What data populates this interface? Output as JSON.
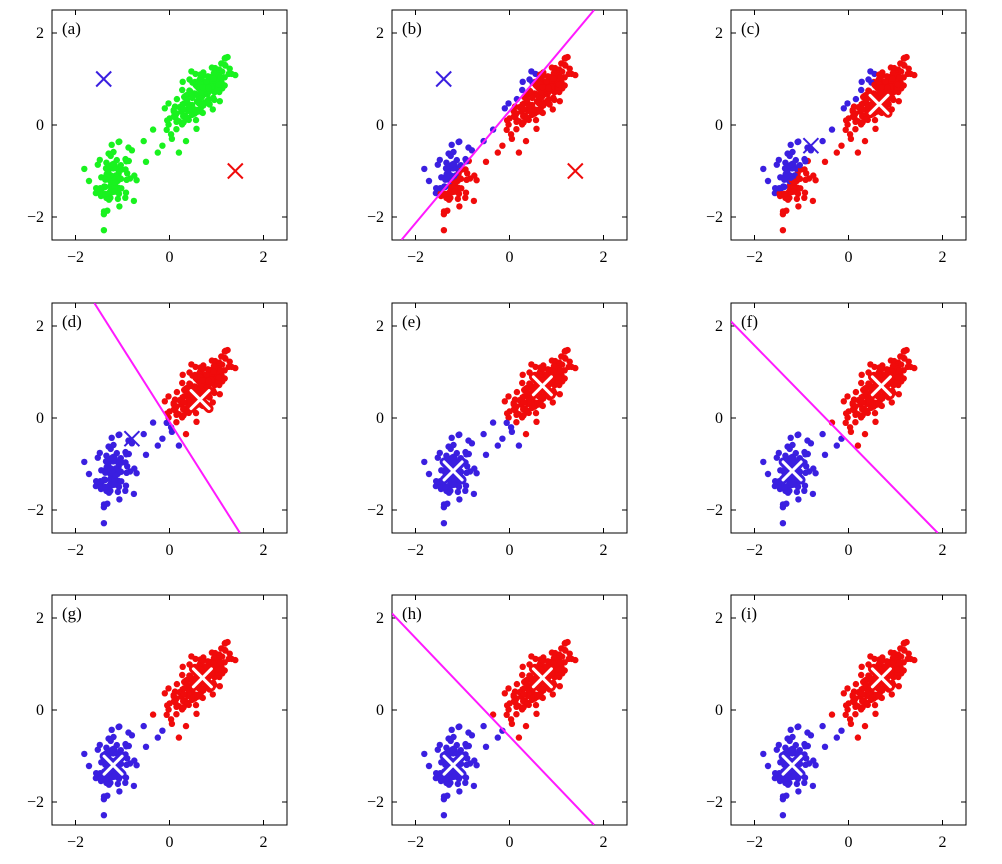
{
  "figure": {
    "background": "#ffffff",
    "colors": {
      "blue": "#3a1fe0",
      "red": "#f00b0b",
      "green": "#19f21f",
      "magenta": "#ff1aff",
      "axis": "#000000"
    }
  },
  "chart_data": [
    {
      "type": "scatter",
      "panel_label": "(a)",
      "xlim": [
        -2.5,
        2.5
      ],
      "ylim": [
        -2.5,
        2.5
      ],
      "xticks": [
        -2,
        0,
        2
      ],
      "yticks": [
        -2,
        0,
        2
      ],
      "xtick_labels": [
        "−2",
        "0",
        "2"
      ],
      "ytick_labels": [
        "−2",
        "0",
        "2"
      ],
      "colouring": "green",
      "centroids": [
        {
          "x": -1.4,
          "y": 1.0,
          "color": "blue",
          "style": "cross"
        },
        {
          "x": 1.4,
          "y": -1.0,
          "color": "red",
          "style": "cross"
        }
      ],
      "boundary": null
    },
    {
      "type": "scatter",
      "panel_label": "(b)",
      "xlim": [
        -2.5,
        2.5
      ],
      "ylim": [
        -2.5,
        2.5
      ],
      "xticks": [
        -2,
        0,
        2
      ],
      "yticks": [
        -2,
        0,
        2
      ],
      "xtick_labels": [
        "−2",
        "0",
        "2"
      ],
      "ytick_labels": [
        "−2",
        "0",
        "2"
      ],
      "colouring": "b",
      "centroids": [
        {
          "x": -1.4,
          "y": 1.0,
          "color": "blue",
          "style": "cross"
        },
        {
          "x": 1.4,
          "y": -1.0,
          "color": "red",
          "style": "cross"
        }
      ],
      "boundary": {
        "x1": -2.3,
        "y1": -2.5,
        "x2": 1.8,
        "y2": 2.5
      }
    },
    {
      "type": "scatter",
      "panel_label": "(c)",
      "xlim": [
        -2.5,
        2.5
      ],
      "ylim": [
        -2.5,
        2.5
      ],
      "xticks": [
        -2,
        0,
        2
      ],
      "yticks": [
        -2,
        0,
        2
      ],
      "xtick_labels": [
        "−2",
        "0",
        "2"
      ],
      "ytick_labels": [
        "−2",
        "0",
        "2"
      ],
      "colouring": "b",
      "centroids": [
        {
          "x": -0.8,
          "y": -0.45,
          "color": "blue",
          "style": "cross"
        },
        {
          "x": 0.65,
          "y": 0.45,
          "color": "red",
          "style": "bold"
        }
      ],
      "boundary": null
    },
    {
      "type": "scatter",
      "panel_label": "(d)",
      "xlim": [
        -2.5,
        2.5
      ],
      "ylim": [
        -2.5,
        2.5
      ],
      "xticks": [
        -2,
        0,
        2
      ],
      "yticks": [
        -2,
        0,
        2
      ],
      "xtick_labels": [
        "−2",
        "0",
        "2"
      ],
      "ytick_labels": [
        "−2",
        "0",
        "2"
      ],
      "colouring": "d",
      "centroids": [
        {
          "x": -0.8,
          "y": -0.45,
          "color": "blue",
          "style": "cross"
        },
        {
          "x": 0.65,
          "y": 0.4,
          "color": "red",
          "style": "bold"
        }
      ],
      "boundary": {
        "x1": -1.6,
        "y1": 2.5,
        "x2": 1.5,
        "y2": -2.5
      }
    },
    {
      "type": "scatter",
      "panel_label": "(e)",
      "xlim": [
        -2.5,
        2.5
      ],
      "ylim": [
        -2.5,
        2.5
      ],
      "xticks": [
        -2,
        0,
        2
      ],
      "yticks": [
        -2,
        0,
        2
      ],
      "xtick_labels": [
        "−2",
        "0",
        "2"
      ],
      "ytick_labels": [
        "−2",
        "0",
        "2"
      ],
      "colouring": "d",
      "centroids": [
        {
          "x": -1.2,
          "y": -1.15,
          "color": "blue",
          "style": "bold"
        },
        {
          "x": 0.7,
          "y": 0.7,
          "color": "red",
          "style": "bold"
        }
      ],
      "boundary": null
    },
    {
      "type": "scatter",
      "panel_label": "(f)",
      "xlim": [
        -2.5,
        2.5
      ],
      "ylim": [
        -2.5,
        2.5
      ],
      "xticks": [
        -2,
        0,
        2
      ],
      "yticks": [
        -2,
        0,
        2
      ],
      "xtick_labels": [
        "−2",
        "0",
        "2"
      ],
      "ytick_labels": [
        "−2",
        "0",
        "2"
      ],
      "colouring": "f",
      "centroids": [
        {
          "x": -1.2,
          "y": -1.15,
          "color": "blue",
          "style": "bold"
        },
        {
          "x": 0.7,
          "y": 0.7,
          "color": "red",
          "style": "bold"
        }
      ],
      "boundary": {
        "x1": -2.5,
        "y1": 2.1,
        "x2": 1.9,
        "y2": -2.5
      }
    },
    {
      "type": "scatter",
      "panel_label": "(g)",
      "xlim": [
        -2.5,
        2.5
      ],
      "ylim": [
        -2.5,
        2.5
      ],
      "xticks": [
        -2,
        0,
        2
      ],
      "yticks": [
        -2,
        0,
        2
      ],
      "xtick_labels": [
        "−2",
        "0",
        "2"
      ],
      "ytick_labels": [
        "−2",
        "0",
        "2"
      ],
      "colouring": "f",
      "centroids": [
        {
          "x": -1.2,
          "y": -1.2,
          "color": "blue",
          "style": "bold"
        },
        {
          "x": 0.7,
          "y": 0.7,
          "color": "red",
          "style": "bold"
        }
      ],
      "boundary": null
    },
    {
      "type": "scatter",
      "panel_label": "(h)",
      "xlim": [
        -2.5,
        2.5
      ],
      "ylim": [
        -2.5,
        2.5
      ],
      "xticks": [
        -2,
        0,
        2
      ],
      "yticks": [
        -2,
        0,
        2
      ],
      "xtick_labels": [
        "−2",
        "0",
        "2"
      ],
      "ytick_labels": [
        "−2",
        "0",
        "2"
      ],
      "colouring": "f",
      "centroids": [
        {
          "x": -1.2,
          "y": -1.2,
          "color": "blue",
          "style": "bold"
        },
        {
          "x": 0.7,
          "y": 0.7,
          "color": "red",
          "style": "bold"
        }
      ],
      "boundary": {
        "x1": -2.5,
        "y1": 2.1,
        "x2": 1.8,
        "y2": -2.5
      }
    },
    {
      "type": "scatter",
      "panel_label": "(i)",
      "xlim": [
        -2.5,
        2.5
      ],
      "ylim": [
        -2.5,
        2.5
      ],
      "xticks": [
        -2,
        0,
        2
      ],
      "yticks": [
        -2,
        0,
        2
      ],
      "xtick_labels": [
        "−2",
        "0",
        "2"
      ],
      "ytick_labels": [
        "−2",
        "0",
        "2"
      ],
      "colouring": "f",
      "centroids": [
        {
          "x": -1.2,
          "y": -1.2,
          "color": "blue",
          "style": "bold"
        },
        {
          "x": 0.7,
          "y": 0.7,
          "color": "red",
          "style": "bold"
        }
      ],
      "boundary": null
    }
  ]
}
